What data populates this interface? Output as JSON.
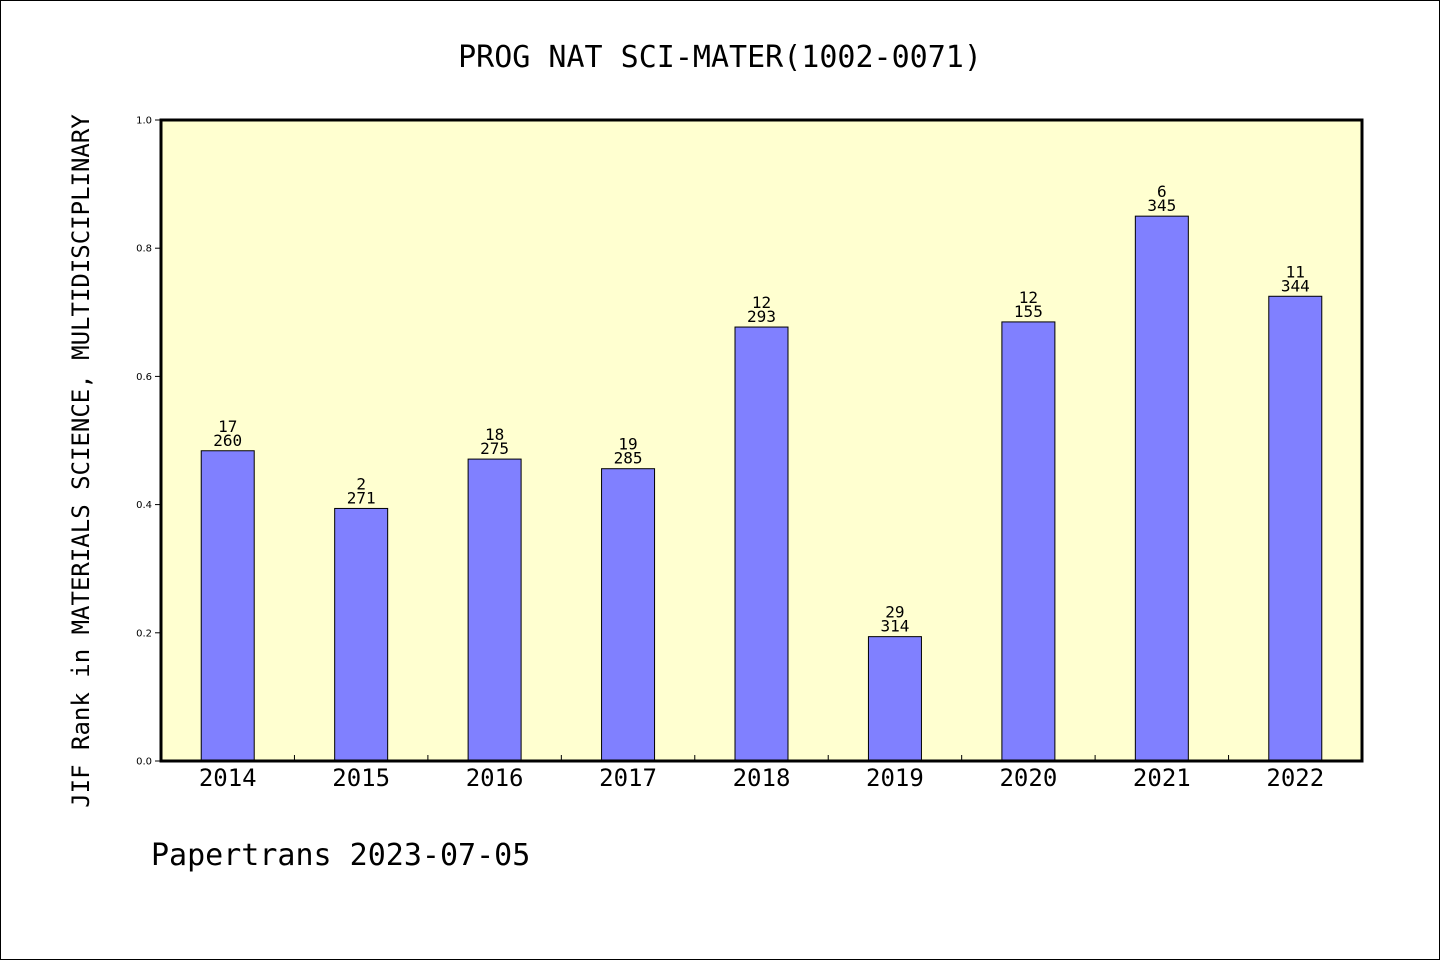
{
  "chart_data": {
    "type": "bar",
    "title": "PROG NAT SCI-MATER(1002-0071)",
    "xlabel": "",
    "ylabel": "JIF Rank in MATERIALS SCIENCE, MULTIDISCIPLINARY",
    "categories": [
      "2014",
      "2015",
      "2016",
      "2017",
      "2018",
      "2019",
      "2020",
      "2021",
      "2022"
    ],
    "values": [
      0.484,
      0.394,
      0.471,
      0.456,
      0.677,
      0.194,
      0.685,
      0.85,
      0.725
    ],
    "rank_labels": [
      "17",
      "2",
      "18",
      "19",
      "12",
      "29",
      "12",
      "6",
      "11"
    ],
    "count_labels": [
      "260",
      "271",
      "275",
      "285",
      "293",
      "314",
      "155",
      "345",
      "344"
    ],
    "ylim": [
      0,
      1.0
    ],
    "yticks": [
      "0.0",
      "0.2",
      "0.4",
      "0.6",
      "0.8",
      "1.0"
    ],
    "grid": false,
    "colors": {
      "bar": "#8080ff",
      "plot_background": "#ffffd0",
      "axes": "#000000"
    }
  },
  "footer": "Papertrans 2023-07-05"
}
